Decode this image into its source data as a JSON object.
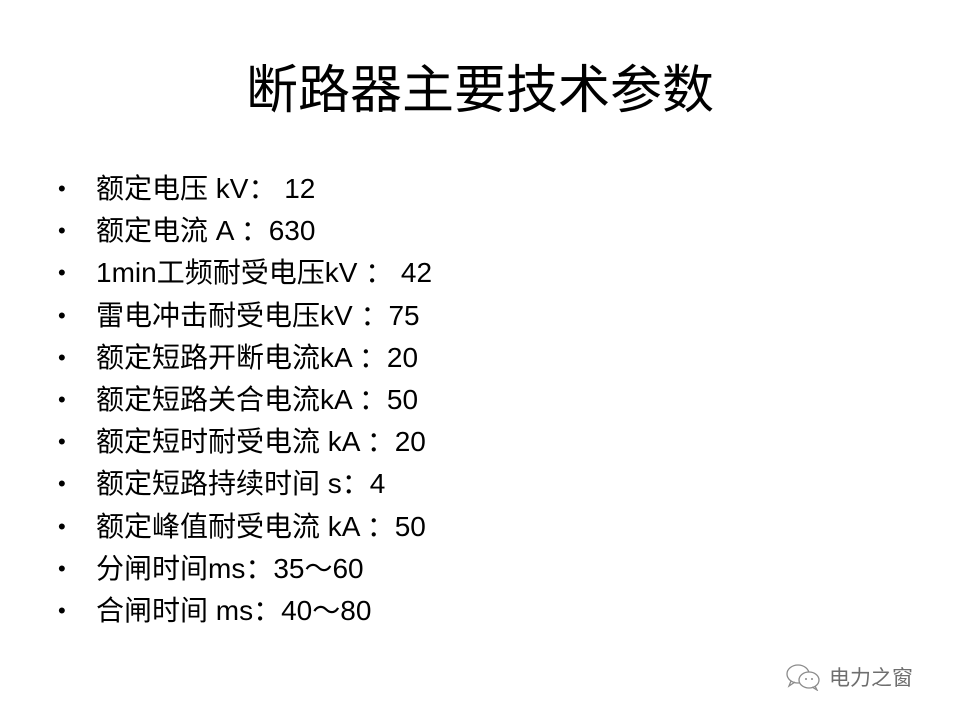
{
  "title": "断路器主要技术参数",
  "items": [
    "额定电压 kV： 12",
    "额定电流 A ：630",
    "1min工频耐受电压kV ： 42",
    "雷电冲击耐受电压kV ：75",
    "额定短路开断电流kA ：20",
    "额定短路关合电流kA ：50",
    "额定短时耐受电流 kA ：20",
    "额定短路持续时间 s：4",
    "额定峰值耐受电流 kA ：50",
    "分闸时间ms：35～60",
    "合闸时间 ms：40～80"
  ],
  "bullet": "•",
  "watermark": {
    "text": "电力之窗",
    "icon": "wechat-icon"
  }
}
